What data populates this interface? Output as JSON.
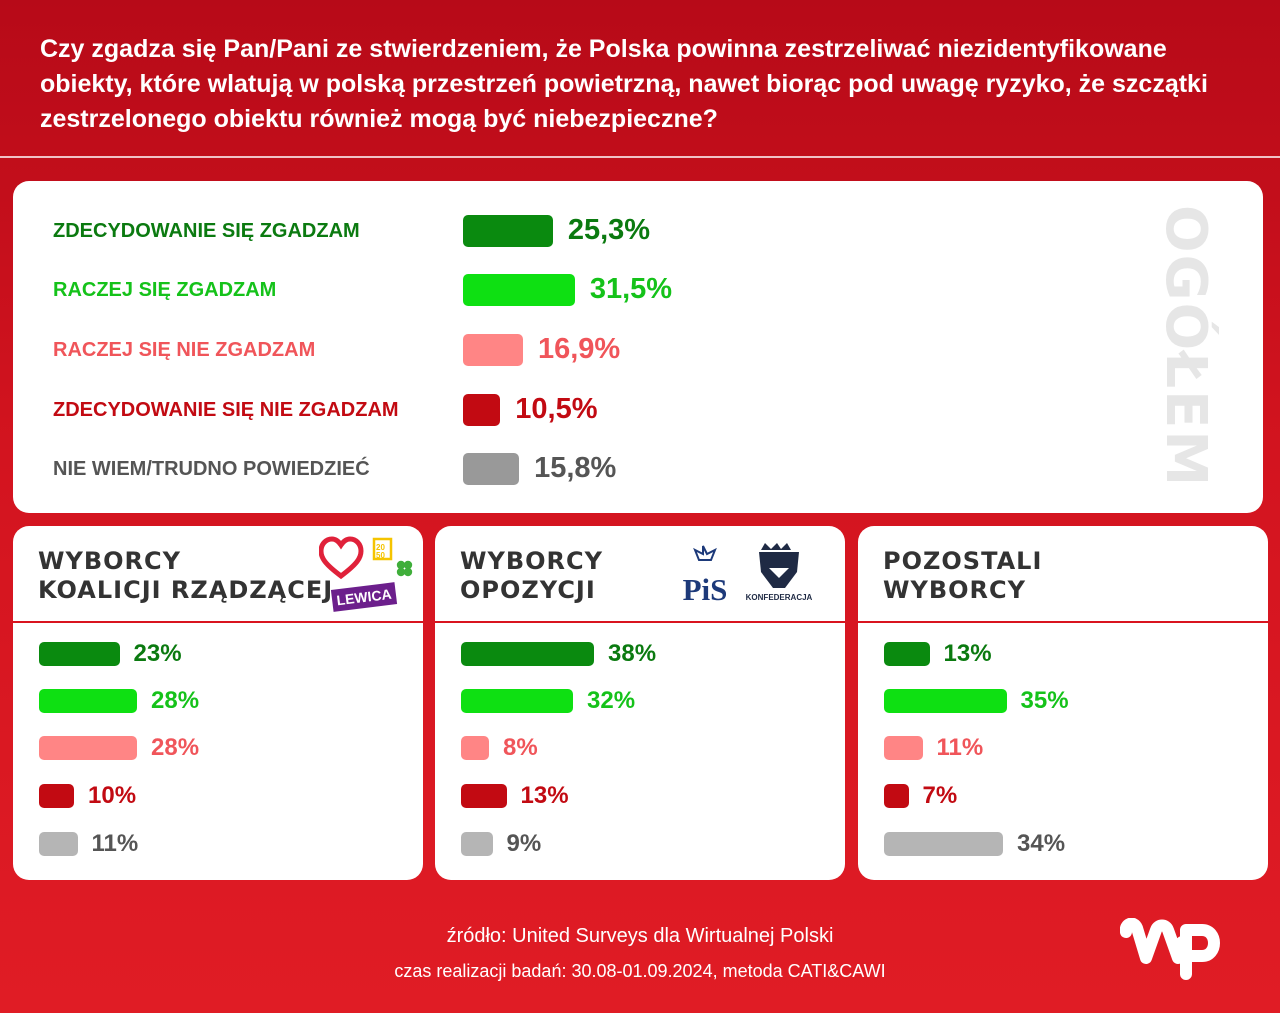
{
  "question": "Czy zgadza się Pan/Pani ze stwierdzeniem, że Polska powinna zestrzeliwać niezidentyfikowane obiekty, które wlatują w polską przestrzeń powietrzną, nawet biorąc pod uwagę ryzyko, że szczątki zestrzelonego obiektu również mogą być niebezpieczne?",
  "overall_label": "OGÓŁEM",
  "colors": {
    "strongly_agree": "#0a8a0f",
    "agree": "#0ee012",
    "disagree": "#ff8585",
    "strongly_disagree": "#c20a12",
    "dont_know": "#999999",
    "dont_know_segment": "#b5b5b5",
    "label_strongly_agree": "#0b7a10",
    "label_agree": "#15c21a",
    "label_disagree": "#f0555a",
    "label_strongly_disagree": "#c20a12",
    "label_dont_know": "#555555"
  },
  "chart_data": [
    {
      "type": "bar",
      "title": "OGÓŁEM",
      "categories": [
        "ZDECYDOWANIE SIĘ ZGADZAM",
        "RACZEJ SIĘ ZGADZAM",
        "RACZEJ SIĘ NIE ZGADZAM",
        "ZDECYDOWANIE SIĘ NIE ZGADZAM",
        "NIE WIEM/TRUDNO POWIEDZIEĆ"
      ],
      "values": [
        25.3,
        31.5,
        16.9,
        10.5,
        15.8
      ],
      "value_labels": [
        "25,3%",
        "31,5%",
        "16,9%",
        "10,5%",
        "15,8%"
      ],
      "xlim": [
        0,
        100
      ]
    },
    {
      "type": "bar",
      "title": "WYBORCY KOALICJI RZĄDZĄCEJ",
      "title_lines": [
        "WYBORCY",
        "KOALICJI RZĄDZĄCEJ"
      ],
      "categories": [
        "ZDECYDOWANIE SIĘ ZGADZAM",
        "RACZEJ SIĘ ZGADZAM",
        "RACZEJ SIĘ NIE ZGADZAM",
        "ZDECYDOWANIE SIĘ NIE ZGADZAM",
        "NIE WIEM/TRUDNO POWIEDZIEĆ"
      ],
      "values": [
        23,
        28,
        28,
        10,
        11
      ],
      "value_labels": [
        "23%",
        "28%",
        "28%",
        "10%",
        "11%"
      ],
      "xlim": [
        0,
        100
      ]
    },
    {
      "type": "bar",
      "title": "WYBORCY OPOZYCJI",
      "title_lines": [
        "WYBORCY",
        "OPOZYCJI"
      ],
      "categories": [
        "ZDECYDOWANIE SIĘ ZGADZAM",
        "RACZEJ SIĘ ZGADZAM",
        "RACZEJ SIĘ NIE ZGADZAM",
        "ZDECYDOWANIE SIĘ NIE ZGADZAM",
        "NIE WIEM/TRUDNO POWIEDZIEĆ"
      ],
      "values": [
        38,
        32,
        8,
        13,
        9
      ],
      "value_labels": [
        "38%",
        "32%",
        "8%",
        "13%",
        "9%"
      ],
      "xlim": [
        0,
        100
      ]
    },
    {
      "type": "bar",
      "title": "POZOSTALI WYBORCY",
      "title_lines": [
        "POZOSTALI",
        "WYBORCY"
      ],
      "categories": [
        "ZDECYDOWANIE SIĘ ZGADZAM",
        "RACZEJ SIĘ ZGADZAM",
        "RACZEJ SIĘ NIE ZGADZAM",
        "ZDECYDOWANIE SIĘ NIE ZGADZAM",
        "NIE WIEM/TRUDNO POWIEDZIEĆ"
      ],
      "values": [
        13,
        35,
        11,
        7,
        34
      ],
      "value_labels": [
        "13%",
        "35%",
        "11%",
        "7%",
        "34%"
      ],
      "xlim": [
        0,
        100
      ]
    }
  ],
  "logos": {
    "lewica_text": "LEWICA",
    "pis_text": "PiS",
    "konfederacja_text": "KONFEDERACJA"
  },
  "footer": {
    "source": "źródło: United Surveys dla Wirtualnej Polski",
    "period": "czas realizacji badań: 30.08-01.09.2024, metoda CATI&CAWI"
  }
}
